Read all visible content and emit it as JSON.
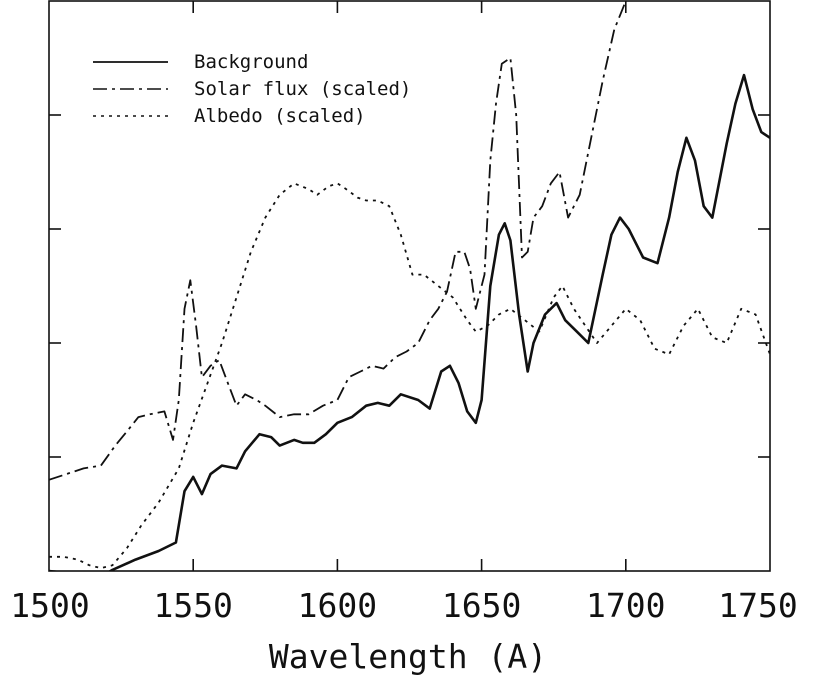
{
  "chart_data": {
    "type": "line",
    "title": "",
    "xlabel": "Wavelength (A)",
    "ylabel": "",
    "xlim": [
      1500,
      1750
    ],
    "ylim": [
      0,
      100
    ],
    "xticks": [
      1500,
      1550,
      1600,
      1650,
      1700,
      1750
    ],
    "yticks": [
      0,
      20,
      40,
      60,
      80,
      100
    ],
    "show_y_tick_labels": false,
    "grid": false,
    "legend_position": "top-left",
    "series": [
      {
        "name": "Background",
        "style": "solid",
        "color": "#111111",
        "x": [
          1500,
          1510,
          1518,
          1522,
          1530,
          1538,
          1544,
          1547,
          1550,
          1553,
          1556,
          1560,
          1565,
          1568,
          1573,
          1577,
          1580,
          1585,
          1588,
          1592,
          1596,
          1600,
          1605,
          1610,
          1614,
          1618,
          1622,
          1628,
          1632,
          1636,
          1639,
          1642,
          1645,
          1648,
          1650,
          1653,
          1656,
          1658,
          1660,
          1663,
          1666,
          1668,
          1672,
          1676,
          1679,
          1683,
          1687,
          1692,
          1695,
          1698,
          1701,
          1706,
          1711,
          1715,
          1718,
          1721,
          1724,
          1727,
          1730,
          1735,
          1738,
          1741,
          1744,
          1747,
          1750
        ],
        "y": [
          0,
          -0.5,
          -1,
          0.2,
          2,
          3.5,
          5,
          14,
          16.5,
          13.5,
          17,
          18.5,
          18,
          21,
          24,
          23.5,
          22,
          23,
          22.5,
          22.5,
          24,
          26,
          27,
          29,
          29.5,
          29,
          31,
          30,
          28.5,
          35,
          36,
          33,
          28,
          26,
          30,
          50,
          59,
          61,
          58,
          45,
          35,
          40,
          45,
          47,
          44,
          42,
          40,
          52,
          59,
          62,
          60,
          55,
          54,
          62,
          70,
          76,
          72,
          64,
          62,
          75,
          82,
          87,
          81,
          77,
          76
        ]
      },
      {
        "name": "Solar flux (scaled)",
        "style": "dashdot",
        "color": "#111111",
        "x": [
          1500,
          1506,
          1512,
          1518,
          1523,
          1527,
          1531,
          1535,
          1540,
          1543,
          1545,
          1547,
          1549,
          1551,
          1553,
          1556,
          1559,
          1562,
          1565,
          1568,
          1572,
          1575,
          1580,
          1585,
          1590,
          1595,
          1600,
          1604,
          1608,
          1612,
          1616,
          1620,
          1624,
          1628,
          1632,
          1635,
          1638,
          1641,
          1644,
          1646,
          1648,
          1651,
          1653,
          1655,
          1657,
          1660,
          1662,
          1664,
          1666,
          1668,
          1671,
          1674,
          1677,
          1680,
          1684,
          1688,
          1692,
          1696,
          1700,
          1704
        ],
        "y": [
          16,
          17,
          18,
          18.5,
          22,
          24.5,
          27,
          27.5,
          28,
          23,
          30,
          46,
          51,
          43,
          34,
          36,
          37,
          33,
          29,
          31,
          30,
          29,
          27,
          27.5,
          27.5,
          29,
          30,
          34,
          35,
          36,
          35.5,
          37.5,
          38.5,
          40,
          44,
          46,
          49,
          56,
          56,
          53,
          46,
          52,
          72,
          82,
          89,
          90,
          80,
          55,
          56,
          62,
          64,
          68,
          70,
          62,
          66,
          76,
          86,
          95,
          100,
          104
        ]
      },
      {
        "name": "Albedo (scaled)",
        "style": "dotted",
        "color": "#111111",
        "x": [
          1500,
          1505,
          1510,
          1514,
          1518,
          1522,
          1527,
          1532,
          1538,
          1545,
          1550,
          1555,
          1560,
          1565,
          1570,
          1575,
          1580,
          1585,
          1590,
          1593,
          1597,
          1600,
          1603,
          1607,
          1610,
          1614,
          1618,
          1622,
          1626,
          1630,
          1635,
          1640,
          1645,
          1648,
          1652,
          1656,
          1660,
          1665,
          1670,
          1675,
          1678,
          1682,
          1686,
          1690,
          1695,
          1700,
          1705,
          1710,
          1715,
          1720,
          1725,
          1730,
          1735,
          1740,
          1745,
          1750
        ],
        "y": [
          2.5,
          2.5,
          2,
          1,
          0.5,
          1,
          4,
          8,
          12,
          18,
          26,
          33,
          40,
          48,
          56,
          62,
          66,
          68,
          67,
          66,
          67.5,
          68,
          67,
          65.5,
          65,
          65,
          64,
          59,
          52,
          52,
          50,
          48,
          44,
          42,
          43,
          45,
          46,
          44,
          42,
          48,
          50,
          46,
          43,
          40,
          43,
          46,
          44,
          39,
          38,
          43,
          46,
          41,
          40,
          46,
          45,
          38
        ]
      }
    ]
  }
}
